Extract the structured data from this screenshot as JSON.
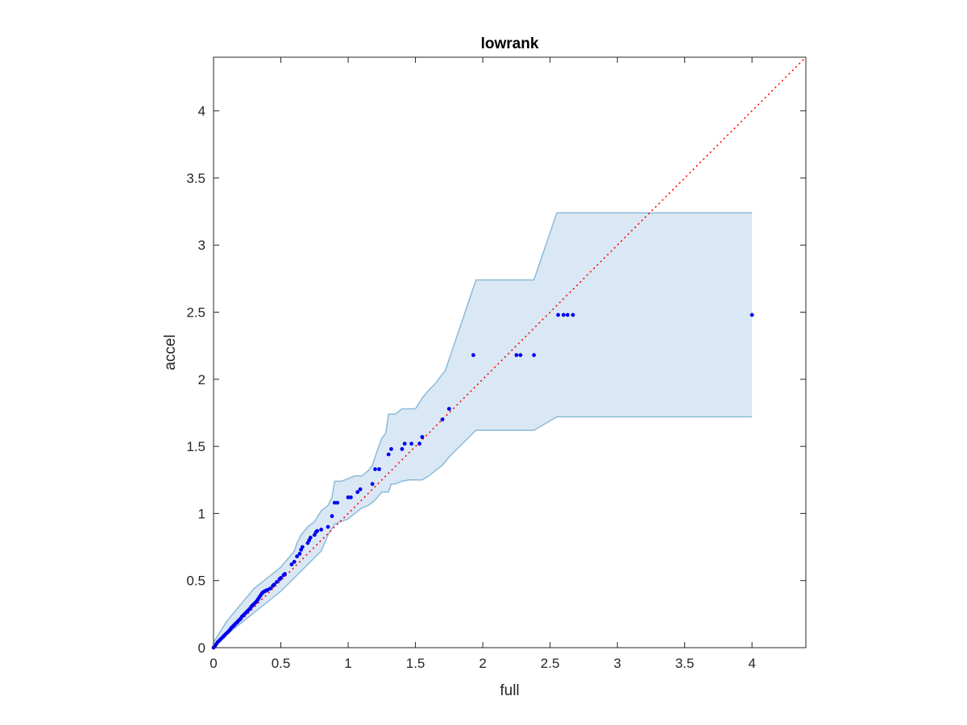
{
  "chart_data": {
    "type": "scatter",
    "title": "lowrank",
    "xlabel": "full",
    "ylabel": "accel",
    "xlim": [
      0,
      4.4
    ],
    "ylim": [
      0,
      4.4
    ],
    "xticks": [
      "0",
      "0.5",
      "1",
      "1.5",
      "2",
      "2.5",
      "3",
      "3.5",
      "4"
    ],
    "yticks": [
      "0",
      "0.5",
      "1",
      "1.5",
      "2",
      "2.5",
      "3",
      "3.5",
      "4"
    ],
    "grid": false,
    "box": true,
    "reference_line": {
      "style": "dotted",
      "color": "#ff0000",
      "x": [
        0,
        4.4
      ],
      "y": [
        0,
        4.4
      ]
    },
    "band": {
      "fill": "#d9e8f4",
      "stroke": "#8cbad9",
      "upper": {
        "x": [
          0,
          0.05,
          0.1,
          0.2,
          0.3,
          0.35,
          0.4,
          0.5,
          0.55,
          0.6,
          0.62,
          0.65,
          0.7,
          0.75,
          0.8,
          0.85,
          0.88,
          0.9,
          0.95,
          1.0,
          1.05,
          1.1,
          1.15,
          1.18,
          1.2,
          1.22,
          1.25,
          1.28,
          1.3,
          1.32,
          1.35,
          1.4,
          1.45,
          1.5,
          1.55,
          1.6,
          1.65,
          1.7,
          1.72,
          1.95,
          2.0,
          2.38,
          2.55,
          2.6,
          4.0
        ],
        "y": [
          0.04,
          0.12,
          0.2,
          0.32,
          0.44,
          0.48,
          0.52,
          0.6,
          0.66,
          0.72,
          0.78,
          0.84,
          0.9,
          0.94,
          1.02,
          1.06,
          1.12,
          1.24,
          1.24,
          1.26,
          1.28,
          1.28,
          1.32,
          1.36,
          1.42,
          1.48,
          1.56,
          1.6,
          1.74,
          1.74,
          1.74,
          1.78,
          1.78,
          1.78,
          1.86,
          1.92,
          1.97,
          2.04,
          2.06,
          2.74,
          2.74,
          2.74,
          3.24,
          3.24,
          3.24
        ]
      },
      "lower": {
        "x": [
          0,
          0.05,
          0.1,
          0.2,
          0.3,
          0.4,
          0.5,
          0.6,
          0.7,
          0.8,
          0.85,
          0.9,
          1.0,
          1.05,
          1.1,
          1.15,
          1.2,
          1.25,
          1.3,
          1.32,
          1.35,
          1.4,
          1.45,
          1.5,
          1.55,
          1.6,
          1.65,
          1.7,
          1.75,
          1.95,
          2.0,
          2.38,
          2.55,
          2.6,
          4.0
        ],
        "y": [
          0.0,
          0.05,
          0.1,
          0.18,
          0.26,
          0.34,
          0.42,
          0.52,
          0.62,
          0.72,
          0.84,
          0.92,
          0.96,
          1.0,
          1.04,
          1.06,
          1.1,
          1.16,
          1.16,
          1.22,
          1.22,
          1.24,
          1.25,
          1.25,
          1.25,
          1.28,
          1.32,
          1.36,
          1.42,
          1.62,
          1.62,
          1.62,
          1.72,
          1.72,
          1.72
        ]
      }
    },
    "series": [
      {
        "color": "#0000ee",
        "x": [
          0,
          0.01,
          0.02,
          0.03,
          0.04,
          0.05,
          0.06,
          0.07,
          0.08,
          0.09,
          0.1,
          0.11,
          0.12,
          0.13,
          0.14,
          0.15,
          0.16,
          0.17,
          0.18,
          0.19,
          0.2,
          0.21,
          0.22,
          0.23,
          0.24,
          0.25,
          0.26,
          0.27,
          0.28,
          0.29,
          0.3,
          0.31,
          0.32,
          0.33,
          0.34,
          0.35,
          0.36,
          0.37,
          0.38,
          0.39,
          0.4,
          0.42,
          0.44,
          0.45,
          0.47,
          0.49,
          0.5,
          0.52,
          0.53,
          0.58,
          0.6,
          0.62,
          0.64,
          0.65,
          0.66,
          0.7,
          0.71,
          0.72,
          0.75,
          0.76,
          0.77,
          0.8,
          0.85,
          0.88,
          0.9,
          0.92,
          1.0,
          1.02,
          1.07,
          1.09,
          1.18,
          1.2,
          1.23,
          1.3,
          1.32,
          1.4,
          1.42,
          1.47,
          1.53,
          1.55,
          1.7,
          1.75,
          1.93,
          2.25,
          2.28,
          2.38,
          2.56,
          2.6,
          2.63,
          2.67,
          4.0
        ],
        "y": [
          0,
          0.01,
          0.025,
          0.04,
          0.05,
          0.06,
          0.07,
          0.08,
          0.09,
          0.1,
          0.11,
          0.12,
          0.13,
          0.145,
          0.155,
          0.165,
          0.175,
          0.185,
          0.195,
          0.205,
          0.215,
          0.23,
          0.24,
          0.25,
          0.26,
          0.27,
          0.28,
          0.29,
          0.305,
          0.315,
          0.325,
          0.335,
          0.345,
          0.36,
          0.375,
          0.39,
          0.405,
          0.415,
          0.42,
          0.425,
          0.43,
          0.44,
          0.46,
          0.47,
          0.49,
          0.51,
          0.52,
          0.54,
          0.55,
          0.62,
          0.64,
          0.68,
          0.7,
          0.73,
          0.75,
          0.78,
          0.8,
          0.82,
          0.84,
          0.86,
          0.87,
          0.88,
          0.9,
          0.98,
          1.08,
          1.08,
          1.12,
          1.12,
          1.16,
          1.18,
          1.22,
          1.33,
          1.33,
          1.44,
          1.48,
          1.48,
          1.52,
          1.52,
          1.52,
          1.57,
          1.7,
          1.78,
          2.18,
          2.18,
          2.18,
          2.18,
          2.48,
          2.48,
          2.48,
          2.48,
          2.48
        ]
      }
    ]
  }
}
